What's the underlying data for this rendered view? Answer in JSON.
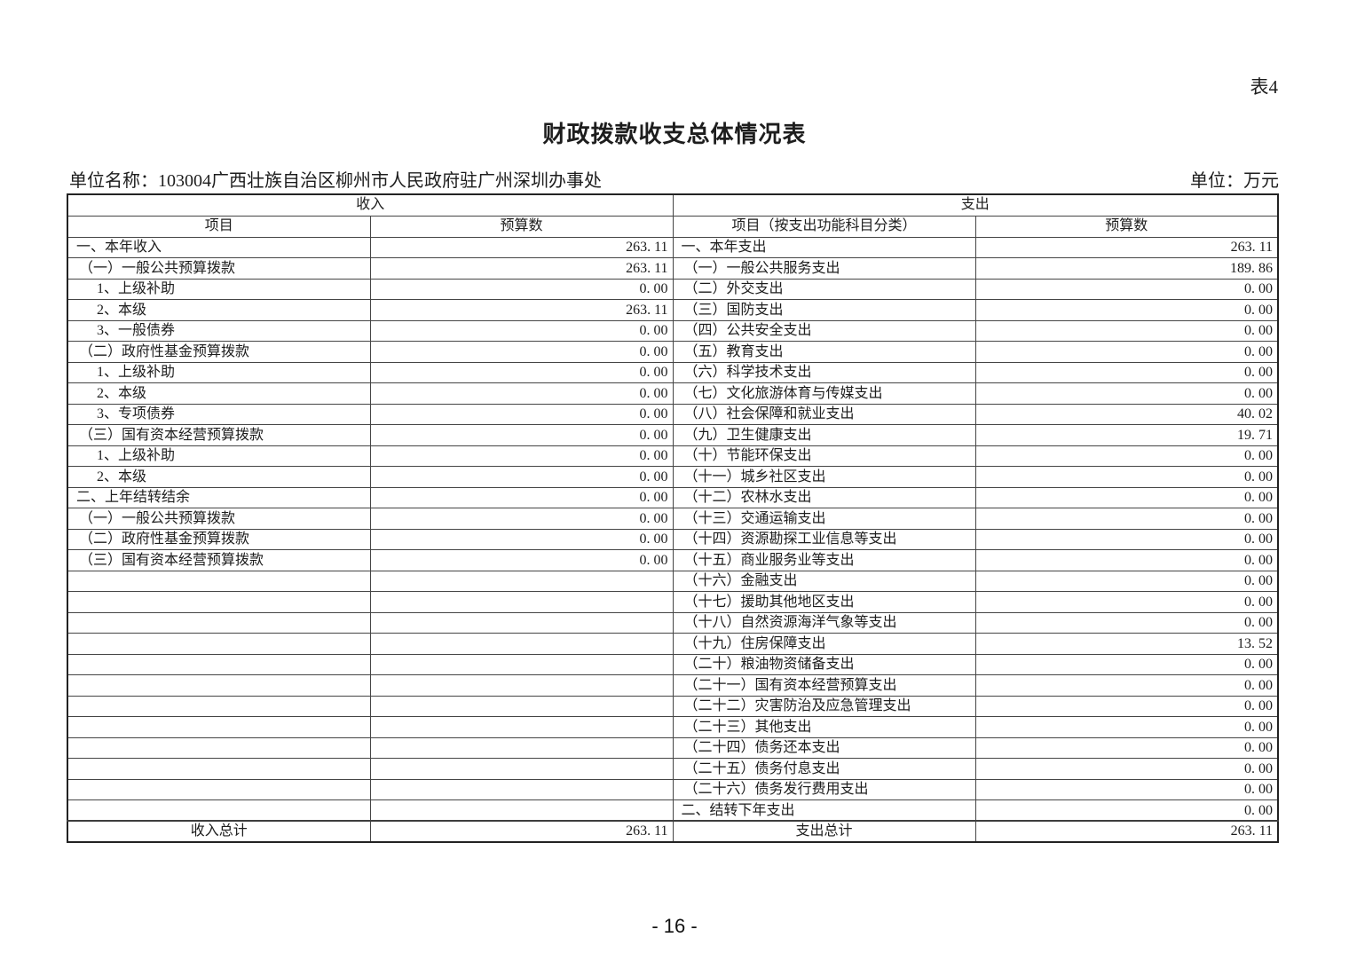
{
  "page": {
    "corner_label": "表4",
    "title": "财政拨款收支总体情况表",
    "unit_name": "单位名称：103004广西壮族自治区柳州市人民政府驻广州深圳办事处",
    "unit_label": "单位：万元",
    "page_number": "- 16 -"
  },
  "table": {
    "income": {
      "group_header": "收入",
      "col_item": "项目",
      "col_budget": "预算数",
      "rows": [
        {
          "label": "一、本年收入",
          "level": 1,
          "value": "263. 11"
        },
        {
          "label": "（一）一般公共预算拨款",
          "level": 2,
          "value": "263. 11"
        },
        {
          "label": "1、上级补助",
          "level": 3,
          "value": "0. 00"
        },
        {
          "label": "2、本级",
          "level": 3,
          "value": "263. 11"
        },
        {
          "label": "3、一般债券",
          "level": 3,
          "value": "0. 00"
        },
        {
          "label": "（二）政府性基金预算拨款",
          "level": 2,
          "value": "0. 00"
        },
        {
          "label": "1、上级补助",
          "level": 3,
          "value": "0. 00"
        },
        {
          "label": "2、本级",
          "level": 3,
          "value": "0. 00"
        },
        {
          "label": "3、专项债券",
          "level": 3,
          "value": "0. 00"
        },
        {
          "label": "（三）国有资本经营预算拨款",
          "level": 2,
          "value": "0. 00"
        },
        {
          "label": "1、上级补助",
          "level": 3,
          "value": "0. 00"
        },
        {
          "label": "2、本级",
          "level": 3,
          "value": "0. 00"
        },
        {
          "label": "二、上年结转结余",
          "level": 1,
          "value": "0. 00"
        },
        {
          "label": "（一）一般公共预算拨款",
          "level": 2,
          "value": "0. 00"
        },
        {
          "label": "（二）政府性基金预算拨款",
          "level": 2,
          "value": "0. 00"
        },
        {
          "label": "（三）国有资本经营预算拨款",
          "level": 2,
          "value": "0. 00"
        },
        {
          "label": "",
          "level": 1,
          "value": ""
        },
        {
          "label": "",
          "level": 1,
          "value": ""
        },
        {
          "label": "",
          "level": 1,
          "value": ""
        },
        {
          "label": "",
          "level": 1,
          "value": ""
        },
        {
          "label": "",
          "level": 1,
          "value": ""
        },
        {
          "label": "",
          "level": 1,
          "value": ""
        },
        {
          "label": "",
          "level": 1,
          "value": ""
        },
        {
          "label": "",
          "level": 1,
          "value": ""
        },
        {
          "label": "",
          "level": 1,
          "value": ""
        },
        {
          "label": "",
          "level": 1,
          "value": ""
        },
        {
          "label": "",
          "level": 1,
          "value": ""
        },
        {
          "label": "",
          "level": 1,
          "value": ""
        }
      ],
      "total_label": "收入总计",
      "total_value": "263. 11"
    },
    "expense": {
      "group_header": "支出",
      "col_item": "项目（按支出功能科目分类）",
      "col_budget": "预算数",
      "rows": [
        {
          "label": "一、本年支出",
          "level": 1,
          "value": "263. 11"
        },
        {
          "label": "（一）一般公共服务支出",
          "level": 2,
          "value": "189. 86"
        },
        {
          "label": "（二）外交支出",
          "level": 2,
          "value": "0. 00"
        },
        {
          "label": "（三）国防支出",
          "level": 2,
          "value": "0. 00"
        },
        {
          "label": "（四）公共安全支出",
          "level": 2,
          "value": "0. 00"
        },
        {
          "label": "（五）教育支出",
          "level": 2,
          "value": "0. 00"
        },
        {
          "label": "（六）科学技术支出",
          "level": 2,
          "value": "0. 00"
        },
        {
          "label": "（七）文化旅游体育与传媒支出",
          "level": 2,
          "value": "0. 00"
        },
        {
          "label": "（八）社会保障和就业支出",
          "level": 2,
          "value": "40. 02"
        },
        {
          "label": "（九）卫生健康支出",
          "level": 2,
          "value": "19. 71"
        },
        {
          "label": "（十）节能环保支出",
          "level": 2,
          "value": "0. 00"
        },
        {
          "label": "（十一）城乡社区支出",
          "level": 2,
          "value": "0. 00"
        },
        {
          "label": "（十二）农林水支出",
          "level": 2,
          "value": "0. 00"
        },
        {
          "label": "（十三）交通运输支出",
          "level": 2,
          "value": "0. 00"
        },
        {
          "label": "（十四）资源勘探工业信息等支出",
          "level": 2,
          "value": "0. 00"
        },
        {
          "label": "（十五）商业服务业等支出",
          "level": 2,
          "value": "0. 00"
        },
        {
          "label": "（十六）金融支出",
          "level": 2,
          "value": "0. 00"
        },
        {
          "label": "（十七）援助其他地区支出",
          "level": 2,
          "value": "0. 00"
        },
        {
          "label": "（十八）自然资源海洋气象等支出",
          "level": 2,
          "value": "0. 00"
        },
        {
          "label": "（十九）住房保障支出",
          "level": 2,
          "value": "13. 52"
        },
        {
          "label": "（二十）粮油物资储备支出",
          "level": 2,
          "value": "0. 00"
        },
        {
          "label": "（二十一）国有资本经营预算支出",
          "level": 2,
          "value": "0. 00"
        },
        {
          "label": "（二十二）灾害防治及应急管理支出",
          "level": 2,
          "value": "0. 00"
        },
        {
          "label": "（二十三）其他支出",
          "level": 2,
          "value": "0. 00"
        },
        {
          "label": "（二十四）债务还本支出",
          "level": 2,
          "value": "0. 00"
        },
        {
          "label": "（二十五）债务付息支出",
          "level": 2,
          "value": "0. 00"
        },
        {
          "label": "（二十六）债务发行费用支出",
          "level": 2,
          "value": "0. 00"
        },
        {
          "label": "二、结转下年支出",
          "level": 1,
          "value": "0. 00"
        }
      ],
      "total_label": "支出总计",
      "total_value": "263. 11"
    }
  }
}
